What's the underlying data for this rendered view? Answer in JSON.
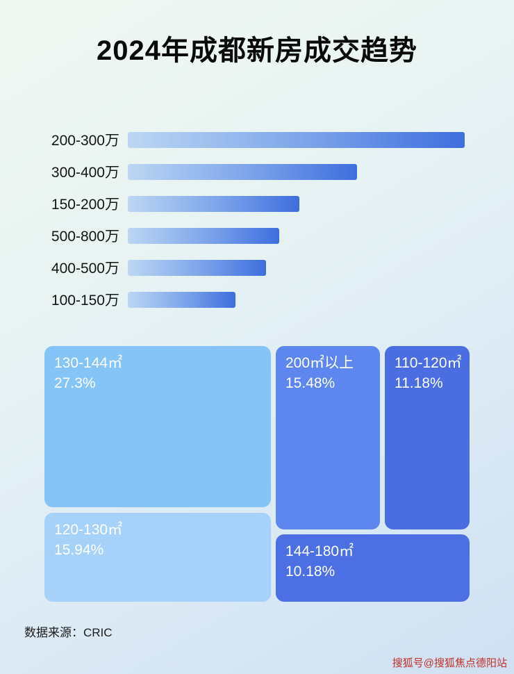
{
  "title": "2024年成都新房成交趋势",
  "footer": {
    "source_label": "数据来源：CRIC"
  },
  "watermark": "搜狐号@搜狐焦点德阳站",
  "colors": {
    "bar_gradient_start": "#bcd7f3",
    "bar_gradient_end": "#3e6ede",
    "background_top": "#f1f8f3",
    "background_bottom": "#cfe0f2"
  },
  "chart_data": [
    {
      "type": "bar",
      "orientation": "horizontal",
      "title": "2024年成都新房成交趋势",
      "categories": [
        "200-300万",
        "300-400万",
        "150-200万",
        "500-800万",
        "400-500万",
        "100-150万"
      ],
      "values": [
        100,
        68,
        51,
        45,
        41,
        32
      ],
      "values_note": "relative bar lengths as % of longest bar; no numeric axis shown in image",
      "xlabel": "",
      "ylabel": "",
      "grid": false,
      "legend": false
    },
    {
      "type": "treemap",
      "cells": [
        {
          "label": "130-144㎡",
          "value": "27.3%",
          "color": "#85c4f6"
        },
        {
          "label": "120-130㎡",
          "value": "15.94%",
          "color": "#a6d1f8"
        },
        {
          "label": "200㎡以上",
          "value": "15.48%",
          "color": "#5d86ee"
        },
        {
          "label": "110-120㎡",
          "value": "11.18%",
          "color": "#4a6de2"
        },
        {
          "label": "144-180㎡",
          "value": "10.18%",
          "color": "#4c6fe4"
        }
      ]
    }
  ]
}
